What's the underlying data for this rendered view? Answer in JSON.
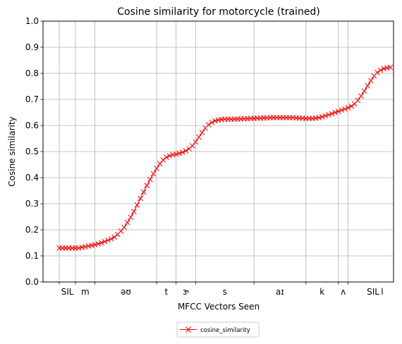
{
  "chart_data": {
    "type": "line",
    "title": "Cosine similarity for motorcycle (trained)",
    "xlabel": "MFCC Vectors Seen",
    "ylabel": "Cosine similarity",
    "ylim": [
      0,
      1.0
    ],
    "xlim": [
      -5,
      103
    ],
    "yticks": [
      "0.0",
      "0.1",
      "0.2",
      "0.3",
      "0.4",
      "0.5",
      "0.6",
      "0.7",
      "0.8",
      "0.9",
      "1.0"
    ],
    "grid": true,
    "phoneme_boundaries": [
      0,
      5,
      11,
      30,
      36,
      42,
      60,
      76,
      86,
      89,
      110,
      113
    ],
    "phoneme_labels": [
      {
        "label": "SIL",
        "x": 2.5
      },
      {
        "label": "m",
        "x": 8
      },
      {
        "label": "əʊ",
        "x": 20.5
      },
      {
        "label": "t",
        "x": 33
      },
      {
        "label": "ɝ",
        "x": 39
      },
      {
        "label": "s",
        "x": 51
      },
      {
        "label": "aɪ",
        "x": 68
      },
      {
        "label": "k",
        "x": 81
      },
      {
        "label": "ʌ",
        "x": 87.5
      },
      {
        "label": "l",
        "x": 99.5
      },
      {
        "label": "SIL",
        "x": 115
      }
    ],
    "legend": {
      "position": "bottom-center",
      "label": "cosine_similarity"
    },
    "series": [
      {
        "name": "cosine_similarity",
        "color": "#ff0000",
        "marker": "x",
        "x_start": 0,
        "x_step": 1,
        "values": [
          0.13,
          0.13,
          0.13,
          0.13,
          0.13,
          0.13,
          0.13,
          0.133,
          0.135,
          0.138,
          0.14,
          0.143,
          0.146,
          0.15,
          0.155,
          0.16,
          0.165,
          0.172,
          0.182,
          0.195,
          0.21,
          0.228,
          0.248,
          0.27,
          0.295,
          0.32,
          0.345,
          0.37,
          0.393,
          0.415,
          0.435,
          0.453,
          0.468,
          0.478,
          0.484,
          0.488,
          0.49,
          0.493,
          0.497,
          0.503,
          0.511,
          0.522,
          0.537,
          0.555,
          0.573,
          0.59,
          0.603,
          0.612,
          0.618,
          0.621,
          0.623,
          0.624,
          0.624,
          0.624,
          0.624,
          0.625,
          0.625,
          0.626,
          0.626,
          0.627,
          0.627,
          0.628,
          0.628,
          0.629,
          0.629,
          0.63,
          0.63,
          0.63,
          0.63,
          0.63,
          0.63,
          0.63,
          0.63,
          0.629,
          0.628,
          0.628,
          0.627,
          0.627,
          0.627,
          0.628,
          0.63,
          0.633,
          0.637,
          0.641,
          0.645,
          0.65,
          0.654,
          0.659,
          0.663,
          0.668,
          0.674,
          0.683,
          0.696,
          0.713,
          0.732,
          0.752,
          0.772,
          0.79,
          0.803,
          0.812,
          0.818,
          0.821,
          0.823
        ]
      }
    ]
  }
}
